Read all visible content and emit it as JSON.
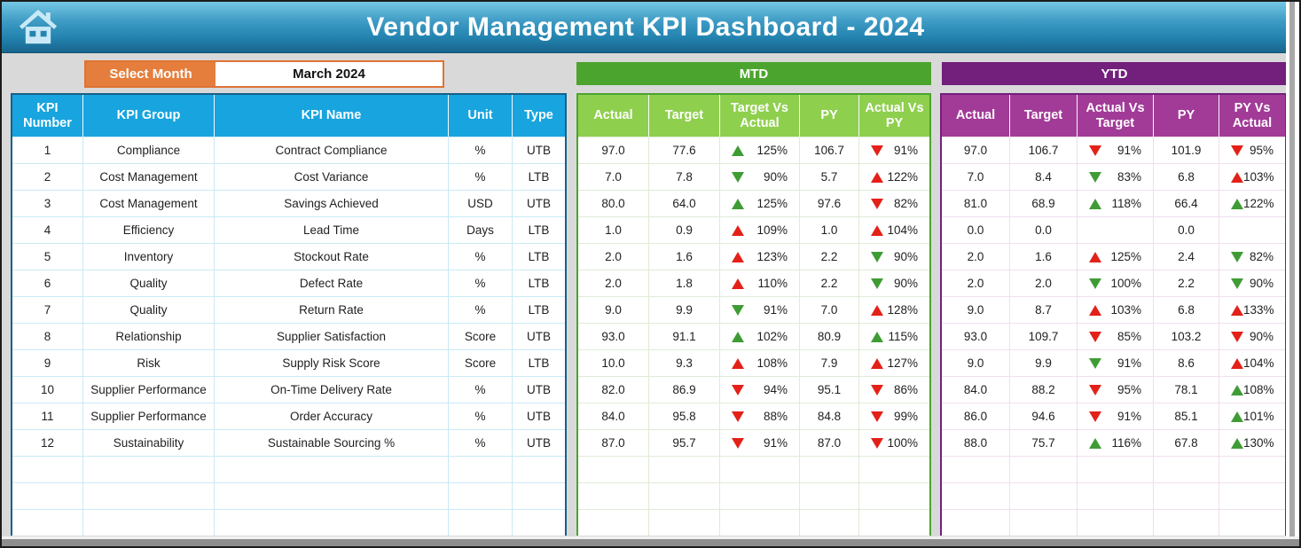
{
  "header": {
    "title": "Vendor Management KPI Dashboard - 2024"
  },
  "month_selector": {
    "label": "Select Month",
    "value": "March 2024"
  },
  "sections": {
    "mtd": "MTD",
    "ytd": "YTD"
  },
  "colors": {
    "banner_blue": "#2484B0",
    "table_header_blue": "#18A4DE",
    "mtd_dark_green": "#4BA42E",
    "mtd_light_green": "#8FCF4E",
    "ytd_dark_purple": "#72207C",
    "ytd_light_purple": "#A23B97",
    "select_orange": "#E57E3C",
    "arrow_up_good_green": "#3F9C35",
    "arrow_bad_red": "#E32119"
  },
  "info_table": {
    "headers": [
      "KPI Number",
      "KPI Group",
      "KPI Name",
      "Unit",
      "Type"
    ]
  },
  "mtd_table": {
    "headers": [
      "Actual",
      "Target",
      "Target Vs Actual",
      "PY",
      "Actual Vs PY"
    ]
  },
  "ytd_table": {
    "headers": [
      "Actual",
      "Target",
      "Actual Vs Target",
      "PY",
      "PY Vs Actual"
    ]
  },
  "empty_trailing_rows": 3,
  "rows": [
    {
      "num": "1",
      "group": "Compliance",
      "name": "Contract Compliance",
      "unit": "%",
      "type": "UTB",
      "mtd": {
        "actual": "97.0",
        "target": "77.6",
        "tva": {
          "d": "up",
          "c": "g",
          "v": "125%"
        },
        "py": "106.7",
        "avp": {
          "d": "down",
          "c": "r",
          "v": "91%"
        }
      },
      "ytd": {
        "actual": "97.0",
        "target": "106.7",
        "avt": {
          "d": "down",
          "c": "r",
          "v": "91%"
        },
        "py": "101.9",
        "pva": {
          "d": "down",
          "c": "r",
          "v": "95%"
        }
      }
    },
    {
      "num": "2",
      "group": "Cost Management",
      "name": "Cost Variance",
      "unit": "%",
      "type": "LTB",
      "mtd": {
        "actual": "7.0",
        "target": "7.8",
        "tva": {
          "d": "down",
          "c": "g",
          "v": "90%"
        },
        "py": "5.7",
        "avp": {
          "d": "up",
          "c": "r",
          "v": "122%"
        }
      },
      "ytd": {
        "actual": "7.0",
        "target": "8.4",
        "avt": {
          "d": "down",
          "c": "g",
          "v": "83%"
        },
        "py": "6.8",
        "pva": {
          "d": "up",
          "c": "r",
          "v": "103%"
        }
      }
    },
    {
      "num": "3",
      "group": "Cost Management",
      "name": "Savings Achieved",
      "unit": "USD",
      "type": "UTB",
      "mtd": {
        "actual": "80.0",
        "target": "64.0",
        "tva": {
          "d": "up",
          "c": "g",
          "v": "125%"
        },
        "py": "97.6",
        "avp": {
          "d": "down",
          "c": "r",
          "v": "82%"
        }
      },
      "ytd": {
        "actual": "81.0",
        "target": "68.9",
        "avt": {
          "d": "up",
          "c": "g",
          "v": "118%"
        },
        "py": "66.4",
        "pva": {
          "d": "up",
          "c": "g",
          "v": "122%"
        }
      }
    },
    {
      "num": "4",
      "group": "Efficiency",
      "name": "Lead Time",
      "unit": "Days",
      "type": "LTB",
      "mtd": {
        "actual": "1.0",
        "target": "0.9",
        "tva": {
          "d": "up",
          "c": "r",
          "v": "109%"
        },
        "py": "1.0",
        "avp": {
          "d": "up",
          "c": "r",
          "v": "104%"
        }
      },
      "ytd": {
        "actual": "0.0",
        "target": "0.0",
        "avt": null,
        "py": "0.0",
        "pva": null
      }
    },
    {
      "num": "5",
      "group": "Inventory",
      "name": "Stockout Rate",
      "unit": "%",
      "type": "LTB",
      "mtd": {
        "actual": "2.0",
        "target": "1.6",
        "tva": {
          "d": "up",
          "c": "r",
          "v": "123%"
        },
        "py": "2.2",
        "avp": {
          "d": "down",
          "c": "g",
          "v": "90%"
        }
      },
      "ytd": {
        "actual": "2.0",
        "target": "1.6",
        "avt": {
          "d": "up",
          "c": "r",
          "v": "125%"
        },
        "py": "2.4",
        "pva": {
          "d": "down",
          "c": "g",
          "v": "82%"
        }
      }
    },
    {
      "num": "6",
      "group": "Quality",
      "name": "Defect Rate",
      "unit": "%",
      "type": "LTB",
      "mtd": {
        "actual": "2.0",
        "target": "1.8",
        "tva": {
          "d": "up",
          "c": "r",
          "v": "110%"
        },
        "py": "2.2",
        "avp": {
          "d": "down",
          "c": "g",
          "v": "90%"
        }
      },
      "ytd": {
        "actual": "2.0",
        "target": "2.0",
        "avt": {
          "d": "down",
          "c": "g",
          "v": "100%"
        },
        "py": "2.2",
        "pva": {
          "d": "down",
          "c": "g",
          "v": "90%"
        }
      }
    },
    {
      "num": "7",
      "group": "Quality",
      "name": "Return Rate",
      "unit": "%",
      "type": "LTB",
      "mtd": {
        "actual": "9.0",
        "target": "9.9",
        "tva": {
          "d": "down",
          "c": "g",
          "v": "91%"
        },
        "py": "7.0",
        "avp": {
          "d": "up",
          "c": "r",
          "v": "128%"
        }
      },
      "ytd": {
        "actual": "9.0",
        "target": "8.7",
        "avt": {
          "d": "up",
          "c": "r",
          "v": "103%"
        },
        "py": "6.8",
        "pva": {
          "d": "up",
          "c": "r",
          "v": "133%"
        }
      }
    },
    {
      "num": "8",
      "group": "Relationship",
      "name": "Supplier Satisfaction",
      "unit": "Score",
      "type": "UTB",
      "mtd": {
        "actual": "93.0",
        "target": "91.1",
        "tva": {
          "d": "up",
          "c": "g",
          "v": "102%"
        },
        "py": "80.9",
        "avp": {
          "d": "up",
          "c": "g",
          "v": "115%"
        }
      },
      "ytd": {
        "actual": "93.0",
        "target": "109.7",
        "avt": {
          "d": "down",
          "c": "r",
          "v": "85%"
        },
        "py": "103.2",
        "pva": {
          "d": "down",
          "c": "r",
          "v": "90%"
        }
      }
    },
    {
      "num": "9",
      "group": "Risk",
      "name": "Supply Risk Score",
      "unit": "Score",
      "type": "LTB",
      "mtd": {
        "actual": "10.0",
        "target": "9.3",
        "tva": {
          "d": "up",
          "c": "r",
          "v": "108%"
        },
        "py": "7.9",
        "avp": {
          "d": "up",
          "c": "r",
          "v": "127%"
        }
      },
      "ytd": {
        "actual": "9.0",
        "target": "9.9",
        "avt": {
          "d": "down",
          "c": "g",
          "v": "91%"
        },
        "py": "8.6",
        "pva": {
          "d": "up",
          "c": "r",
          "v": "104%"
        }
      }
    },
    {
      "num": "10",
      "group": "Supplier Performance",
      "name": "On-Time Delivery Rate",
      "unit": "%",
      "type": "UTB",
      "mtd": {
        "actual": "82.0",
        "target": "86.9",
        "tva": {
          "d": "down",
          "c": "r",
          "v": "94%"
        },
        "py": "95.1",
        "avp": {
          "d": "down",
          "c": "r",
          "v": "86%"
        }
      },
      "ytd": {
        "actual": "84.0",
        "target": "88.2",
        "avt": {
          "d": "down",
          "c": "r",
          "v": "95%"
        },
        "py": "78.1",
        "pva": {
          "d": "up",
          "c": "g",
          "v": "108%"
        }
      }
    },
    {
      "num": "11",
      "group": "Supplier Performance",
      "name": "Order Accuracy",
      "unit": "%",
      "type": "UTB",
      "mtd": {
        "actual": "84.0",
        "target": "95.8",
        "tva": {
          "d": "down",
          "c": "r",
          "v": "88%"
        },
        "py": "84.8",
        "avp": {
          "d": "down",
          "c": "r",
          "v": "99%"
        }
      },
      "ytd": {
        "actual": "86.0",
        "target": "94.6",
        "avt": {
          "d": "down",
          "c": "r",
          "v": "91%"
        },
        "py": "85.1",
        "pva": {
          "d": "up",
          "c": "g",
          "v": "101%"
        }
      }
    },
    {
      "num": "12",
      "group": "Sustainability",
      "name": "Sustainable Sourcing %",
      "unit": "%",
      "type": "UTB",
      "mtd": {
        "actual": "87.0",
        "target": "95.7",
        "tva": {
          "d": "down",
          "c": "r",
          "v": "91%"
        },
        "py": "87.0",
        "avp": {
          "d": "down",
          "c": "r",
          "v": "100%"
        }
      },
      "ytd": {
        "actual": "88.0",
        "target": "75.7",
        "avt": {
          "d": "up",
          "c": "g",
          "v": "116%"
        },
        "py": "67.8",
        "pva": {
          "d": "up",
          "c": "g",
          "v": "130%"
        }
      }
    }
  ]
}
